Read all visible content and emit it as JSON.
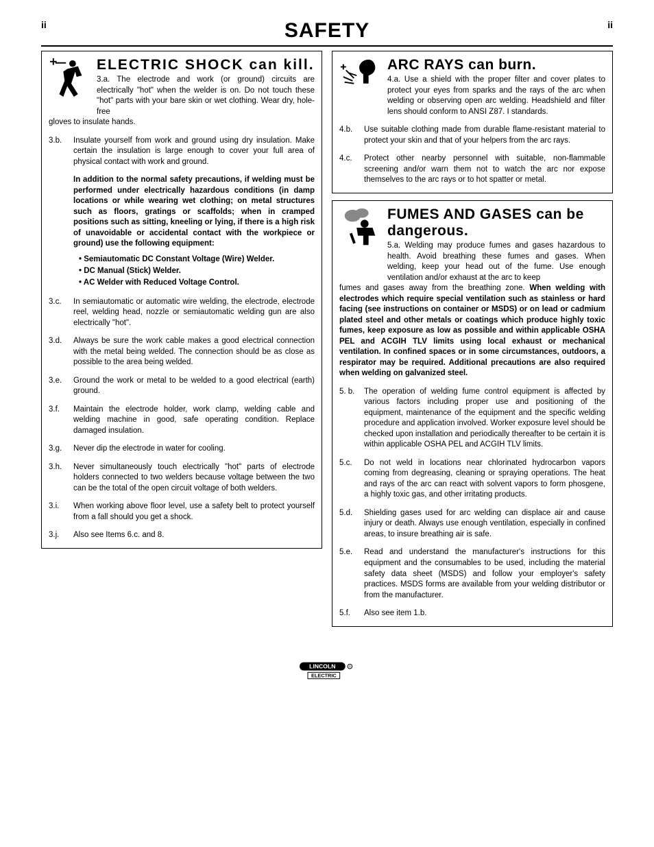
{
  "header": {
    "title": "SAFETY",
    "page_num_left": "ii",
    "page_num_right": "ii"
  },
  "left": {
    "section1": {
      "title": "ELECTRIC SHOCK can kill.",
      "lead_num": "3.a.",
      "lead": "The electrode and work (or ground) circuits are electrically \"hot\" when the welder is on. Do not touch these \"hot\" parts with your bare skin or wet clothing. Wear dry, hole-free",
      "lead_tail": "gloves to insulate hands.",
      "items": [
        {
          "num": "3.b.",
          "text": "Insulate yourself from work and ground using dry insulation. Make certain the insulation is large enough to cover your full area of physical contact with work and ground."
        },
        {
          "num": "",
          "bold_text": "In addition to the normal safety precautions, if welding must be performed under electrically hazardous conditions (in damp locations or while wearing wet clothing; on metal structures such as floors, gratings or scaffolds; when in cramped positions such as sitting, kneeling or lying, if there is a high risk of unavoidable or accidental contact with the workpiece or ground) use the following equipment:"
        },
        {
          "bullets": [
            "• Semiautomatic DC Constant Voltage (Wire) Welder.",
            "• DC Manual (Stick) Welder.",
            "• AC Welder with Reduced Voltage Control."
          ]
        },
        {
          "num": "3.c.",
          "text": "In semiautomatic or automatic wire welding, the electrode, electrode reel, welding head, nozzle or semiautomatic welding gun are also electrically \"hot\"."
        },
        {
          "num": "3.d.",
          "text": "Always be sure the work cable makes a good electrical connection with the metal being welded. The connection should be as close as possible to the area being welded."
        },
        {
          "num": "3.e.",
          "text": "Ground the work or metal to be welded to a good electrical (earth) ground."
        },
        {
          "num": "3.f.",
          "text": "Maintain the electrode holder, work clamp, welding cable and welding machine in good, safe operating condition. Replace damaged insulation."
        },
        {
          "num": "3.g.",
          "text": "Never dip the electrode in water for cooling."
        },
        {
          "num": "3.h.",
          "text": "Never simultaneously touch electrically \"hot\" parts of electrode holders connected to two welders because voltage between the two can be the total of the open circuit voltage of both welders."
        },
        {
          "num": "3.i.",
          "text": "When working above floor level, use a safety belt to protect yourself from a fall should you get a shock."
        },
        {
          "num": "3.j.",
          "text": "Also see Items 6.c. and 8."
        }
      ]
    }
  },
  "right": {
    "section2": {
      "title": "ARC RAYS can burn.",
      "lead_num": "4.a.",
      "lead": "Use a shield with the proper filter and cover plates to protect your eyes from sparks and the rays of the arc when welding or observing open arc welding. Headshield and filter lens should conform to ANSI Z87. I standards.",
      "items": [
        {
          "num": "4.b.",
          "text": "Use suitable clothing made from durable flame-resistant material to protect your skin and that of your helpers from the arc rays."
        },
        {
          "num": "4.c.",
          "text": "Protect other nearby personnel with suitable, non-flammable screening and/or warn them not to watch the arc nor expose themselves to the arc rays or to hot spatter or metal."
        }
      ]
    },
    "section3": {
      "title": "FUMES AND GASES can be dangerous.",
      "lead_num": "5.a.",
      "lead": "Welding may produce fumes and gases hazardous to health. Avoid breathing these fumes and gases. When welding, keep your head out of the fume. Use enough ventilation and/or exhaust at the arc to keep",
      "cont_plain": "fumes and gases away from the breathing zone. ",
      "cont_bold": "When welding with electrodes which require special ventilation such as stainless or hard facing (see instructions on container or MSDS) or on lead or cadmium plated steel and other metals or coatings which produce highly toxic fumes, keep exposure as low as possible and within applicable OSHA PEL and ACGIH TLV limits using local exhaust or mechanical ventilation. In confined spaces or in some circumstances, outdoors, a respirator may be required. Additional precautions are also required when welding on galvanized  steel.",
      "items": [
        {
          "num": "5. b.",
          "text": "The operation of welding fume control equipment is affected by various factors including proper use and positioning of the equipment, maintenance of the equipment and the specific welding procedure and application involved.  Worker exposure level should be checked upon installation and periodically thereafter to be certain it is within applicable OSHA PEL and ACGIH TLV limits."
        },
        {
          "num": "5.c.",
          "text": "Do not weld in locations near chlorinated hydrocarbon vapors coming from degreasing, cleaning or spraying operations. The heat and rays of the arc can react with solvent vapors to form phosgene, a highly toxic gas, and other irritating products."
        },
        {
          "num": "5.d.",
          "text": "Shielding gases used for arc welding can displace air and cause injury or death. Always use enough ventilation, especially in confined areas, to insure breathing air is safe."
        },
        {
          "num": "5.e.",
          "text": "Read and understand the manufacturer's instructions for this equipment and the consumables to be used, including the material safety data sheet (MSDS) and follow your employer's safety practices. MSDS forms are available from your welding distributor or from the manufacturer."
        },
        {
          "num": "5.f.",
          "text": "Also see item 1.b."
        }
      ]
    }
  },
  "footer": {
    "brand_top": "LINCOLN",
    "brand_bottom": "ELECTRIC"
  }
}
